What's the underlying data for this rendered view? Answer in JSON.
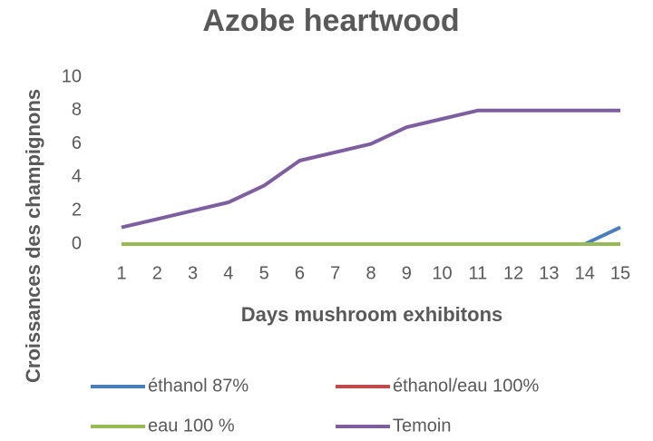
{
  "chart_data": {
    "type": "line",
    "title": "Azobe heartwood",
    "xlabel": "Days mushroom exhibitons",
    "ylabel": "Croissances des champignons",
    "categories": [
      "1",
      "2",
      "3",
      "4",
      "5",
      "6",
      "7",
      "8",
      "9",
      "10",
      "11",
      "12",
      "13",
      "14",
      "15"
    ],
    "series": [
      {
        "name": "éthanol 87%",
        "color": "#4a7ebb",
        "values": [
          0,
          0,
          0,
          0,
          0,
          0,
          0,
          0,
          0,
          0,
          0,
          0,
          0,
          0,
          1
        ]
      },
      {
        "name": "éthanol/eau 100%",
        "color": "#be4b48",
        "values": [
          0,
          0,
          0,
          0,
          0,
          0,
          0,
          0,
          0,
          0,
          0,
          0,
          0,
          0,
          0
        ]
      },
      {
        "name": "eau 100 %",
        "color": "#98b954",
        "values": [
          0,
          0,
          0,
          0,
          0,
          0,
          0,
          0,
          0,
          0,
          0,
          0,
          0,
          0,
          0
        ]
      },
      {
        "name": "Temoin",
        "color": "#7d5fa0",
        "values": [
          1,
          1.5,
          2,
          2.5,
          3.5,
          5,
          5.5,
          6,
          7,
          7.5,
          8,
          8,
          8,
          8,
          8
        ]
      }
    ],
    "ylim": [
      0,
      10
    ],
    "yticks": [
      0,
      2,
      4,
      6,
      8,
      10
    ],
    "grid": false
  }
}
